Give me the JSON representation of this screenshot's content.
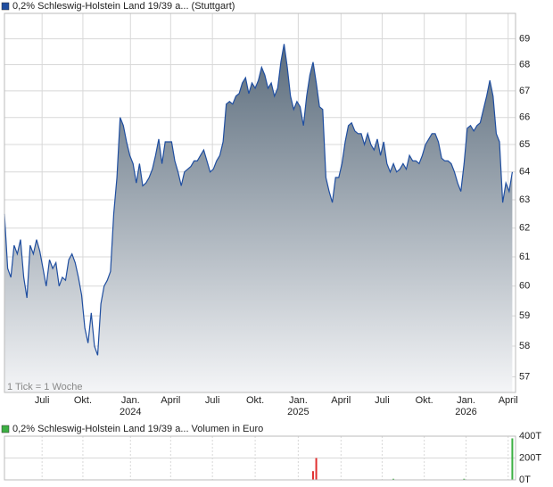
{
  "chart_data": [
    {
      "type": "area",
      "log": true,
      "grid": true,
      "series": [
        {
          "name": "0,2% Schleswig-Holstein Land 19/39 a... (Stuttgart)",
          "color": "#1f4ea0",
          "fill": "#5b6c7c",
          "values": [
            62.5,
            60.6,
            60.3,
            61.4,
            61.1,
            61.6,
            60.3,
            59.6,
            61.4,
            61.1,
            61.6,
            61.2,
            60.6,
            60.0,
            60.9,
            60.6,
            60.8,
            60.0,
            60.3,
            60.2,
            60.9,
            61.1,
            60.8,
            60.3,
            59.7,
            58.6,
            58.1,
            59.1,
            58.0,
            57.7,
            59.4,
            60.0,
            60.2,
            60.5,
            62.5,
            63.8,
            66.0,
            65.7,
            65.1,
            64.6,
            64.3,
            63.6,
            64.3,
            63.5,
            63.6,
            63.8,
            64.1,
            64.6,
            65.2,
            64.3,
            65.1,
            65.1,
            65.1,
            64.4,
            64.0,
            63.5,
            64.0,
            64.1,
            64.2,
            64.4,
            64.4,
            64.6,
            64.8,
            64.4,
            64.0,
            64.1,
            64.4,
            64.6,
            65.1,
            66.5,
            66.6,
            66.5,
            66.8,
            66.9,
            67.3,
            67.5,
            66.9,
            67.3,
            67.1,
            67.4,
            67.9,
            67.6,
            67.1,
            67.3,
            66.8,
            67.1,
            68.1,
            68.8,
            67.9,
            66.8,
            66.3,
            66.6,
            66.4,
            65.7,
            66.8,
            67.6,
            68.1,
            67.3,
            66.4,
            66.3,
            63.8,
            63.3,
            62.9,
            63.8,
            63.8,
            64.3,
            65.1,
            65.7,
            65.8,
            65.5,
            65.4,
            65.4,
            65.0,
            65.4,
            65.0,
            64.8,
            65.2,
            64.6,
            65.1,
            64.3,
            64.0,
            64.3,
            64.0,
            64.1,
            64.3,
            64.1,
            64.6,
            64.4,
            64.4,
            64.3,
            64.6,
            65.0,
            65.2,
            65.4,
            65.4,
            65.1,
            64.5,
            64.4,
            64.4,
            64.3,
            64.0,
            63.6,
            63.3,
            64.3,
            65.6,
            65.7,
            65.5,
            65.7,
            65.8,
            66.3,
            66.8,
            67.4,
            66.8,
            65.4,
            65.1,
            62.9,
            63.6,
            63.3,
            64.0
          ]
        }
      ],
      "xlim": [
        0,
        159
      ],
      "xticks": [
        {
          "value": 11.7,
          "label": "Juli"
        },
        {
          "value": 24.4,
          "label": "Okt."
        },
        {
          "value": 39.2,
          "label": "Jan."
        },
        {
          "value": 51.7,
          "label": "April"
        },
        {
          "value": 64.7,
          "label": "Juli"
        },
        {
          "value": 78,
          "label": "Okt."
        },
        {
          "value": 91.4,
          "label": "Jan."
        },
        {
          "value": 104.7,
          "label": "April"
        },
        {
          "value": 117.5,
          "label": "Juli"
        },
        {
          "value": 130.6,
          "label": "Okt."
        },
        {
          "value": 143.6,
          "label": "Jan."
        },
        {
          "value": 156.7,
          "label": "April"
        }
      ],
      "xyears": [
        {
          "value": 39.2,
          "label": "2024"
        },
        {
          "value": 91.4,
          "label": "2025"
        },
        {
          "value": 143.6,
          "label": "2026"
        }
      ],
      "ylim": [
        56.5,
        70
      ],
      "yticks": [
        57,
        58,
        59,
        60,
        61,
        62,
        63,
        64,
        65,
        66,
        67,
        68,
        69
      ],
      "annotation": "1 Tick = 1 Woche"
    },
    {
      "type": "bar",
      "grid": true,
      "series": [
        {
          "name": "0,2% Schleswig-Holstein Land 19/39 a... Volumen in Euro",
          "color": "#3cb043",
          "x": [
            96,
            97,
            121,
            143,
            158
          ],
          "values": [
            80000,
            200000,
            10000,
            10000,
            380000
          ],
          "colors": [
            "#e03030",
            "#e03030",
            "#3cb043",
            "#3cb043",
            "#3cb043"
          ]
        }
      ],
      "xlim": [
        0,
        159
      ],
      "ylim": [
        0,
        400000
      ],
      "yticks": [
        {
          "value": 0,
          "label": "0T"
        },
        {
          "value": 200000,
          "label": "200T"
        },
        {
          "value": 400000,
          "label": "400T"
        }
      ]
    }
  ]
}
